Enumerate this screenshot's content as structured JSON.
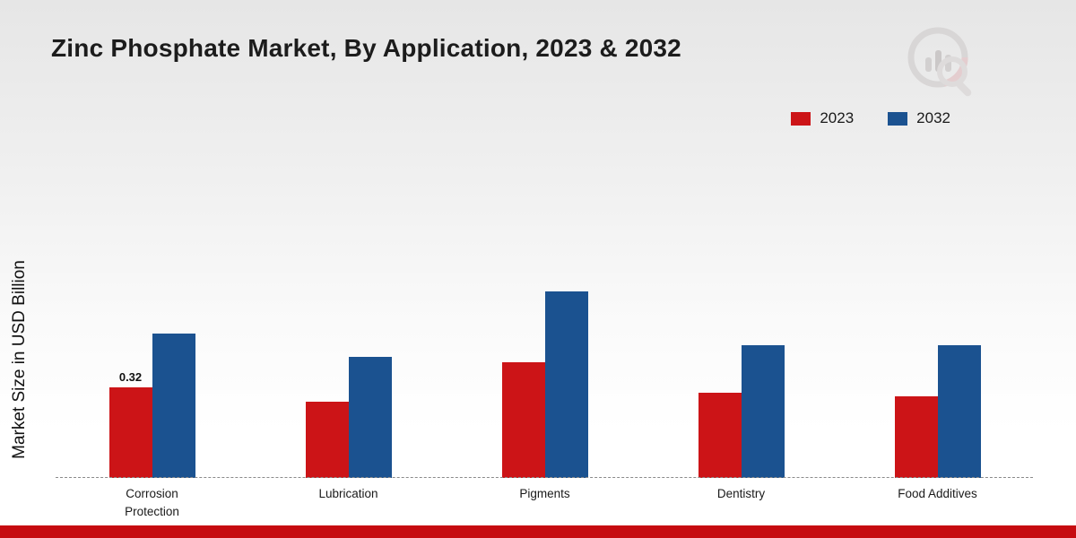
{
  "title": "Zinc Phosphate Market, By Application, 2023 & 2032",
  "y_axis_label": "Market Size in USD Billion",
  "legend": {
    "items": [
      {
        "label": "2023",
        "color": "#cc1417"
      },
      {
        "label": "2032",
        "color": "#1b5290"
      }
    ]
  },
  "colors": {
    "series_2023": "#cc1417",
    "series_2032": "#1b5290",
    "footer_bar": "#c60b10",
    "baseline": "#8a8a8a"
  },
  "chart_data": {
    "type": "bar",
    "title": "Zinc Phosphate Market, By Application, 2023 & 2032",
    "xlabel": "",
    "ylabel": "Market Size in USD Billion",
    "categories": [
      "Corrosion Protection",
      "Lubrication",
      "Pigments",
      "Dentistry",
      "Food Additives"
    ],
    "series": [
      {
        "name": "2023",
        "color": "#cc1417",
        "values": [
          0.32,
          0.27,
          0.41,
          0.3,
          0.29
        ]
      },
      {
        "name": "2032",
        "color": "#1b5290",
        "values": [
          0.51,
          0.43,
          0.66,
          0.47,
          0.47
        ]
      }
    ],
    "value_label": {
      "series": "2023",
      "category_index": 0,
      "text": "0.32"
    },
    "ylim": [
      0,
      0.8
    ],
    "grid": false,
    "legend_position": "top-right",
    "baseline_style": "dashed"
  }
}
